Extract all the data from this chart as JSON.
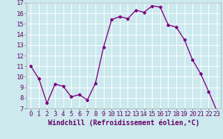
{
  "x": [
    0,
    1,
    2,
    3,
    4,
    5,
    6,
    7,
    8,
    9,
    10,
    11,
    12,
    13,
    14,
    15,
    16,
    17,
    18,
    19,
    20,
    21,
    22,
    23
  ],
  "y": [
    11.0,
    9.8,
    7.5,
    9.3,
    9.1,
    8.1,
    8.3,
    7.8,
    9.4,
    12.8,
    15.4,
    15.7,
    15.5,
    16.3,
    16.1,
    16.7,
    16.6,
    14.9,
    14.7,
    13.5,
    11.6,
    10.3,
    8.6,
    6.8
  ],
  "line_color": "#800080",
  "marker": "D",
  "marker_size": 2,
  "bg_color": "#cce9ee",
  "grid_color": "#ffffff",
  "xlabel": "Windchill (Refroidissement éolien,°C)",
  "ylim": [
    7,
    17
  ],
  "yticks": [
    7,
    8,
    9,
    10,
    11,
    12,
    13,
    14,
    15,
    16,
    17
  ],
  "xticks": [
    0,
    1,
    2,
    3,
    4,
    5,
    6,
    7,
    8,
    9,
    10,
    11,
    12,
    13,
    14,
    15,
    16,
    17,
    18,
    19,
    20,
    21,
    22,
    23
  ],
  "xlabel_fontsize": 7,
  "tick_fontsize": 6.5,
  "line_width": 1.0
}
